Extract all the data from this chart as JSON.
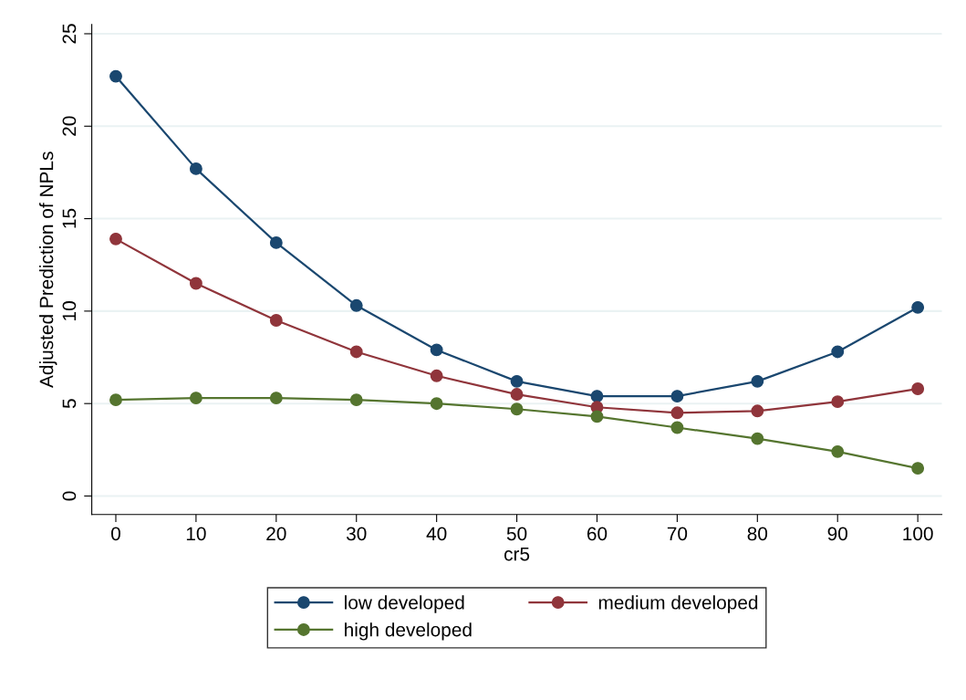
{
  "chart_data": {
    "type": "line",
    "xlabel": "cr5",
    "ylabel": "Adjusted Prediction of NPLs",
    "x": [
      0,
      10,
      20,
      30,
      40,
      50,
      60,
      70,
      80,
      90,
      100
    ],
    "series": [
      {
        "name": "low developed",
        "color": "#1a476f",
        "values": [
          22.7,
          17.7,
          13.7,
          10.3,
          7.9,
          6.2,
          5.4,
          5.4,
          6.2,
          7.8,
          10.2
        ]
      },
      {
        "name": "medium developed",
        "color": "#90353b",
        "values": [
          13.9,
          11.5,
          9.5,
          7.8,
          6.5,
          5.5,
          4.8,
          4.5,
          4.6,
          5.1,
          5.8
        ]
      },
      {
        "name": "high developed",
        "color": "#55752f",
        "values": [
          5.2,
          5.3,
          5.3,
          5.2,
          5.0,
          4.7,
          4.3,
          3.7,
          3.1,
          2.4,
          1.5
        ]
      }
    ],
    "xlim": [
      -3,
      103
    ],
    "xticks": [
      0,
      10,
      20,
      30,
      40,
      50,
      60,
      70,
      80,
      90,
      100
    ],
    "ylim": [
      -1,
      25.5
    ],
    "yticks": [
      0,
      5,
      10,
      15,
      20,
      25
    ],
    "grid": "y",
    "legend": "bottom",
    "marker": "circle",
    "line_style": "solid"
  }
}
